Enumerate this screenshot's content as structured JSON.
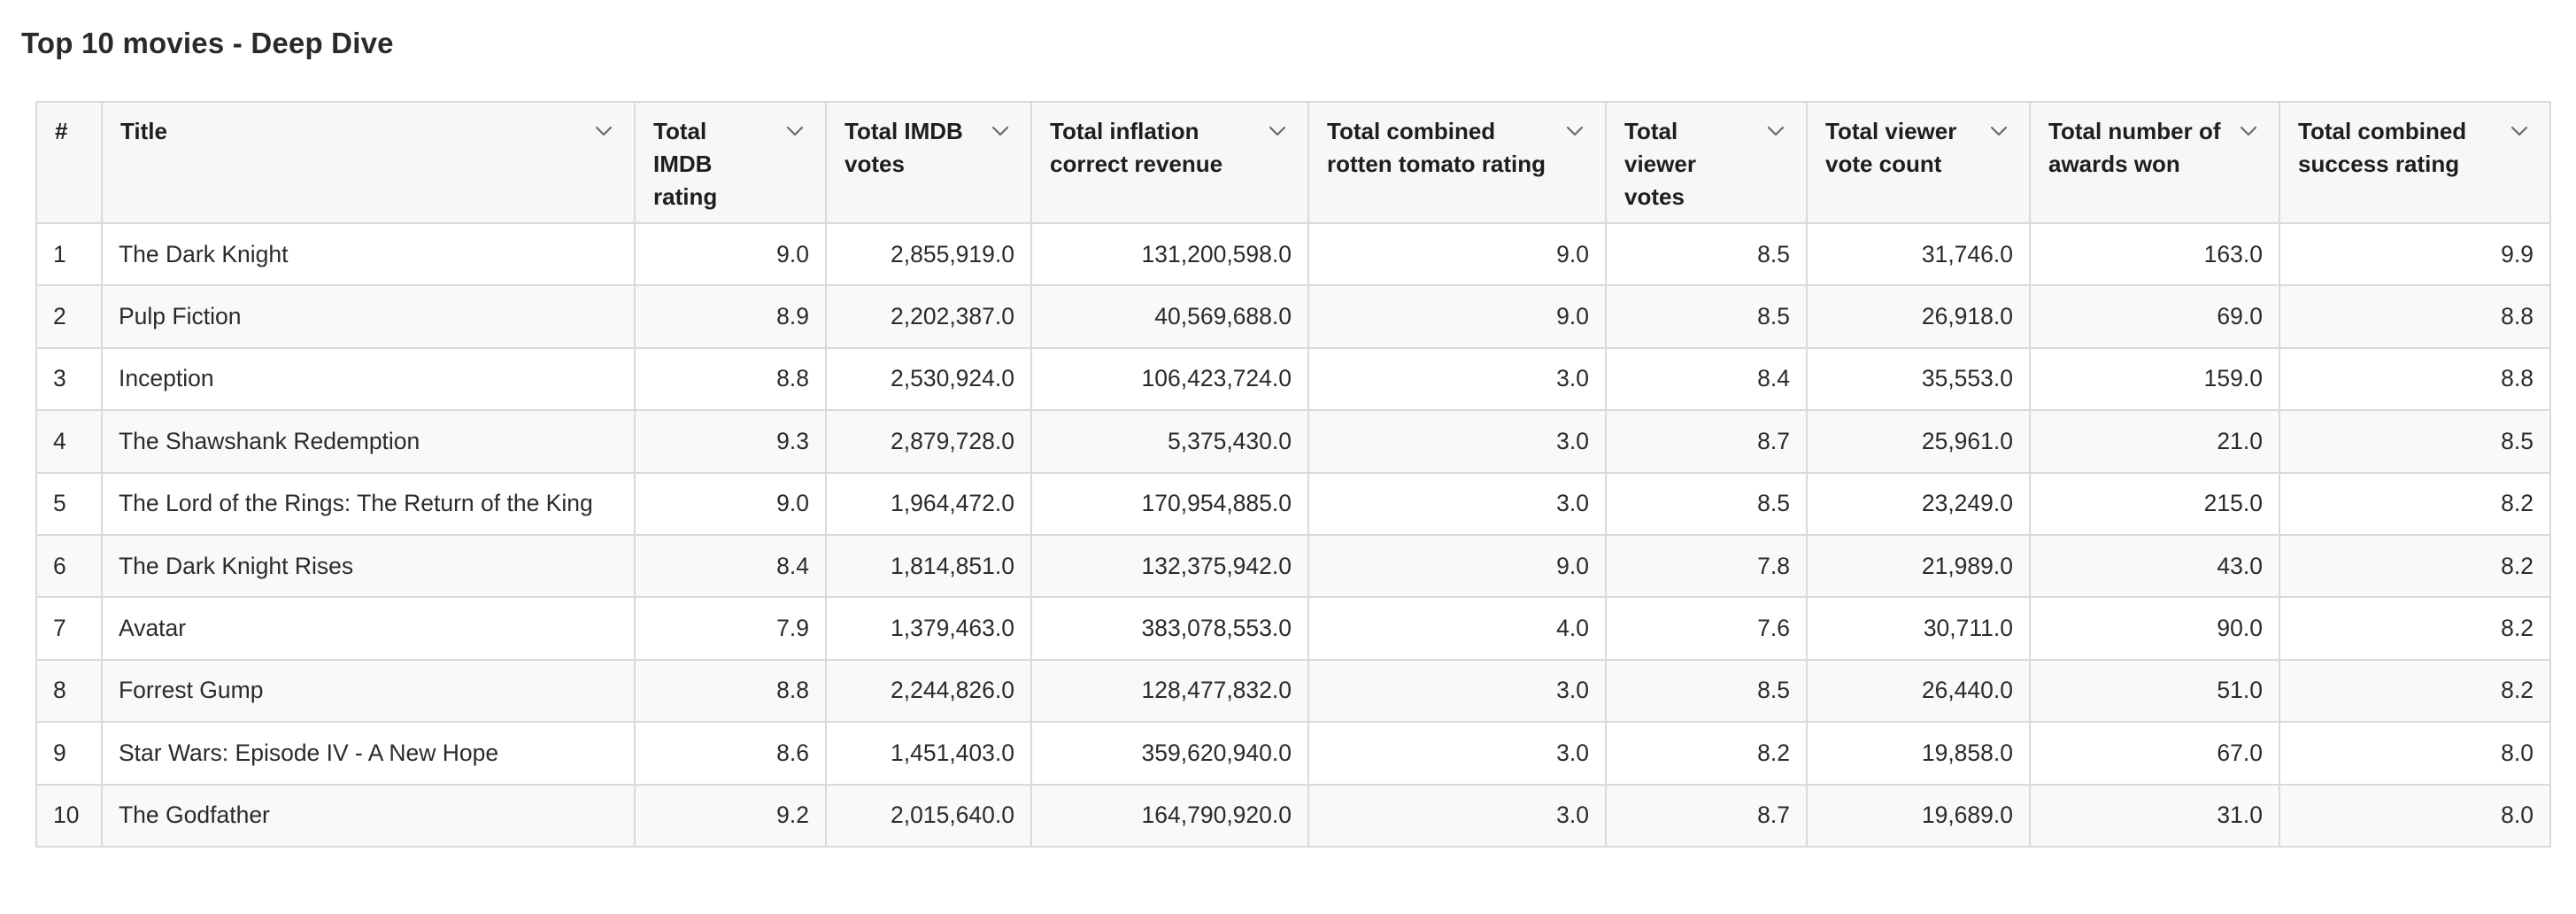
{
  "page": {
    "title": "Top 10 movies - Deep Dive"
  },
  "table": {
    "columns": [
      {
        "key": "idx",
        "label": "#",
        "sortable": false
      },
      {
        "key": "title",
        "label": "Title",
        "sortable": true
      },
      {
        "key": "imdb_rating",
        "label": "Total IMDB rating",
        "sortable": true
      },
      {
        "key": "imdb_votes",
        "label": "Total IMDB votes",
        "sortable": true
      },
      {
        "key": "revenue",
        "label": "Total inflation correct revenue",
        "sortable": true
      },
      {
        "key": "rt_rating",
        "label": "Total combined rotten tomato rating",
        "sortable": true
      },
      {
        "key": "viewer_votes",
        "label": "Total viewer votes",
        "sortable": true
      },
      {
        "key": "viewer_vote_count",
        "label": "Total viewer vote count",
        "sortable": true
      },
      {
        "key": "awards",
        "label": "Total number of awards won",
        "sortable": true
      },
      {
        "key": "success",
        "label": "Total combined success rating",
        "sortable": true
      }
    ],
    "rows": [
      {
        "idx": "1",
        "title": "The Dark Knight",
        "imdb_rating": "9.0",
        "imdb_votes": "2,855,919.0",
        "revenue": "131,200,598.0",
        "rt_rating": "9.0",
        "viewer_votes": "8.5",
        "viewer_vote_count": "31,746.0",
        "awards": "163.0",
        "success": "9.9"
      },
      {
        "idx": "2",
        "title": "Pulp Fiction",
        "imdb_rating": "8.9",
        "imdb_votes": "2,202,387.0",
        "revenue": "40,569,688.0",
        "rt_rating": "9.0",
        "viewer_votes": "8.5",
        "viewer_vote_count": "26,918.0",
        "awards": "69.0",
        "success": "8.8"
      },
      {
        "idx": "3",
        "title": "Inception",
        "imdb_rating": "8.8",
        "imdb_votes": "2,530,924.0",
        "revenue": "106,423,724.0",
        "rt_rating": "3.0",
        "viewer_votes": "8.4",
        "viewer_vote_count": "35,553.0",
        "awards": "159.0",
        "success": "8.8"
      },
      {
        "idx": "4",
        "title": "The Shawshank Redemption",
        "imdb_rating": "9.3",
        "imdb_votes": "2,879,728.0",
        "revenue": "5,375,430.0",
        "rt_rating": "3.0",
        "viewer_votes": "8.7",
        "viewer_vote_count": "25,961.0",
        "awards": "21.0",
        "success": "8.5"
      },
      {
        "idx": "5",
        "title": "The Lord of the Rings: The Return of the King",
        "imdb_rating": "9.0",
        "imdb_votes": "1,964,472.0",
        "revenue": "170,954,885.0",
        "rt_rating": "3.0",
        "viewer_votes": "8.5",
        "viewer_vote_count": "23,249.0",
        "awards": "215.0",
        "success": "8.2"
      },
      {
        "idx": "6",
        "title": "The Dark Knight Rises",
        "imdb_rating": "8.4",
        "imdb_votes": "1,814,851.0",
        "revenue": "132,375,942.0",
        "rt_rating": "9.0",
        "viewer_votes": "7.8",
        "viewer_vote_count": "21,989.0",
        "awards": "43.0",
        "success": "8.2"
      },
      {
        "idx": "7",
        "title": "Avatar",
        "imdb_rating": "7.9",
        "imdb_votes": "1,379,463.0",
        "revenue": "383,078,553.0",
        "rt_rating": "4.0",
        "viewer_votes": "7.6",
        "viewer_vote_count": "30,711.0",
        "awards": "90.0",
        "success": "8.2"
      },
      {
        "idx": "8",
        "title": "Forrest Gump",
        "imdb_rating": "8.8",
        "imdb_votes": "2,244,826.0",
        "revenue": "128,477,832.0",
        "rt_rating": "3.0",
        "viewer_votes": "8.5",
        "viewer_vote_count": "26,440.0",
        "awards": "51.0",
        "success": "8.2"
      },
      {
        "idx": "9",
        "title": "Star Wars: Episode IV - A New Hope",
        "imdb_rating": "8.6",
        "imdb_votes": "1,451,403.0",
        "revenue": "359,620,940.0",
        "rt_rating": "3.0",
        "viewer_votes": "8.2",
        "viewer_vote_count": "19,858.0",
        "awards": "67.0",
        "success": "8.0"
      },
      {
        "idx": "10",
        "title": "The Godfather",
        "imdb_rating": "9.2",
        "imdb_votes": "2,015,640.0",
        "revenue": "164,790,920.0",
        "rt_rating": "3.0",
        "viewer_votes": "8.7",
        "viewer_vote_count": "19,689.0",
        "awards": "31.0",
        "success": "8.0"
      }
    ]
  },
  "icons": {
    "sort": "chevron-down-icon"
  }
}
